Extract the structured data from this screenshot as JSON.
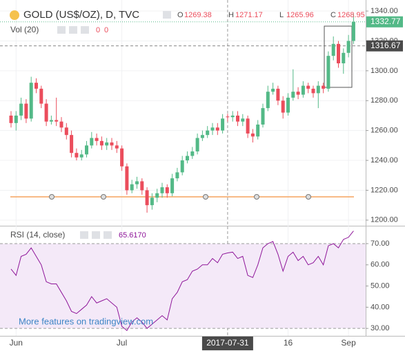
{
  "chart_data": {
    "type": "candlestick",
    "title": "GOLD (US$/OZ), D, TVC",
    "ohlc_letters": [
      "O",
      "H",
      "L",
      "C"
    ],
    "volume_legend": {
      "label": "Vol (20)",
      "values": [
        0,
        0
      ]
    },
    "up_color": "#53b987",
    "down_color": "#eb4d5c",
    "categories": [
      null,
      "Jun",
      null,
      null,
      null,
      null,
      null,
      null,
      null,
      null,
      null,
      null,
      null,
      null,
      null,
      null,
      null,
      null,
      null,
      null,
      null,
      null,
      "Jul",
      null,
      null,
      null,
      null,
      null,
      null,
      null,
      null,
      null,
      null,
      null,
      null,
      null,
      null,
      null,
      null,
      null,
      null,
      null,
      null,
      "2017-07-31",
      null,
      null,
      null,
      null,
      null,
      null,
      null,
      null,
      null,
      null,
      null,
      "16",
      null,
      null,
      null,
      null,
      null,
      null,
      null,
      null,
      null,
      null,
      null,
      "Sep",
      null
    ],
    "open": [
      1270,
      1265,
      1270,
      1278,
      1268,
      1292,
      1288,
      1278,
      1266,
      1267,
      1266,
      1262,
      1257,
      1245,
      1242,
      1244,
      1250,
      1255,
      1253,
      1250,
      1252,
      1250,
      1248,
      1236,
      1220,
      1224,
      1226,
      1220,
      1210,
      1215,
      1218,
      1222,
      1218,
      1228,
      1232,
      1240,
      1243,
      1246,
      1255,
      1257,
      1260,
      1262,
      1260,
      1269.38,
      1268.95,
      1270,
      1266,
      1268,
      1258,
      1256,
      1264,
      1275,
      1286,
      1288,
      1280,
      1272,
      1282,
      1286,
      1284,
      1290,
      1288,
      1285,
      1290,
      1288,
      1310,
      1318,
      1305,
      1312,
      1320
    ],
    "high": [
      1273,
      1273,
      1282,
      1281,
      1296,
      1295,
      1290,
      1281,
      1270,
      1282,
      1269,
      1265,
      1260,
      1248,
      1247,
      1253,
      1259,
      1258,
      1256,
      1255,
      1255,
      1253,
      1250,
      1238,
      1227,
      1229,
      1228,
      1222,
      1218,
      1221,
      1225,
      1224,
      1231,
      1235,
      1243,
      1246,
      1249,
      1258,
      1260,
      1263,
      1265,
      1265,
      1271,
      1271.17,
      1273,
      1273,
      1271,
      1270,
      1261,
      1267,
      1278,
      1290,
      1292,
      1290,
      1283,
      1285,
      1301,
      1289,
      1293,
      1292,
      1290,
      1293,
      1292,
      1313,
      1323,
      1320,
      1315,
      1324,
      1338
    ],
    "low": [
      1262,
      1260,
      1267,
      1265,
      1266,
      1285,
      1275,
      1263,
      1264,
      1263,
      1259,
      1254,
      1242,
      1240,
      1240,
      1242,
      1248,
      1250,
      1247,
      1247,
      1247,
      1245,
      1233,
      1217,
      1218,
      1221,
      1217,
      1205,
      1207,
      1212,
      1215,
      1215,
      1216,
      1226,
      1230,
      1238,
      1241,
      1244,
      1253,
      1255,
      1257,
      1257,
      1258,
      1265.96,
      1266,
      1263,
      1263,
      1255,
      1252,
      1254,
      1262,
      1273,
      1284,
      1277,
      1268,
      1270,
      1280,
      1281,
      1282,
      1285,
      1282,
      1275,
      1285,
      1286,
      1307,
      1302,
      1298,
      1309,
      1318
    ],
    "close": [
      1265,
      1270,
      1278,
      1268,
      1292,
      1288,
      1278,
      1266,
      1267,
      1266,
      1262,
      1257,
      1245,
      1242,
      1244,
      1250,
      1255,
      1253,
      1250,
      1252,
      1250,
      1248,
      1236,
      1220,
      1224,
      1226,
      1220,
      1210,
      1215,
      1218,
      1222,
      1218,
      1228,
      1232,
      1240,
      1243,
      1246,
      1255,
      1257,
      1260,
      1262,
      1260,
      1268,
      1268.95,
      1270,
      1266,
      1268,
      1258,
      1256,
      1264,
      1275,
      1286,
      1288,
      1280,
      1272,
      1282,
      1286,
      1284,
      1290,
      1288,
      1285,
      1290,
      1288,
      1310,
      1318,
      1305,
      1312,
      1320,
      1332.77
    ],
    "ylim": [
      1196.7,
      1347.4
    ],
    "yticks": [
      {
        "value": 1200,
        "label": "1200.00"
      },
      {
        "value": 1220,
        "label": "1220.00"
      },
      {
        "value": 1240,
        "label": "1240.00"
      },
      {
        "value": 1260,
        "label": "1260.00"
      },
      {
        "value": 1280,
        "label": "1280.00"
      },
      {
        "value": 1300,
        "label": "1300.00"
      },
      {
        "value": 1320,
        "label": "1320.00"
      },
      {
        "value": 1340,
        "label": "1340.00"
      }
    ],
    "crosshair_price": 1316.67,
    "horizontal_line": {
      "value": 1215.6,
      "color": "#f5a25d"
    },
    "rectangle_price": [
      1288.9,
      1329.9
    ],
    "rsi": {
      "label": "RSI (14, close)",
      "color": "#8e1599",
      "value_label": "65.6170",
      "values": [
        58,
        55,
        64,
        65,
        68,
        64,
        60,
        52,
        51,
        51,
        47,
        43,
        38,
        37,
        39,
        41,
        45,
        42,
        43,
        44,
        42,
        40,
        31,
        29,
        33,
        35,
        33,
        30,
        32,
        34,
        36,
        34,
        44,
        47,
        52,
        53,
        57,
        58,
        60,
        60,
        63,
        61,
        65,
        65.617,
        66,
        63,
        64,
        55,
        54,
        60,
        68,
        70,
        71,
        65,
        57,
        64,
        66,
        62,
        64,
        60,
        61,
        64,
        60,
        69,
        70,
        68,
        72,
        73,
        76
      ],
      "ylim": [
        26.8,
        77.8
      ],
      "yticks": [
        {
          "value": 30,
          "label": "30.00"
        },
        {
          "value": 40,
          "label": "40.00"
        },
        {
          "value": 50,
          "label": "50.00"
        },
        {
          "value": 60,
          "label": "60.00"
        },
        {
          "value": 70,
          "label": "70.00"
        }
      ],
      "band": [
        30,
        70
      ]
    },
    "footer_link": "More features on tradingview.com"
  }
}
